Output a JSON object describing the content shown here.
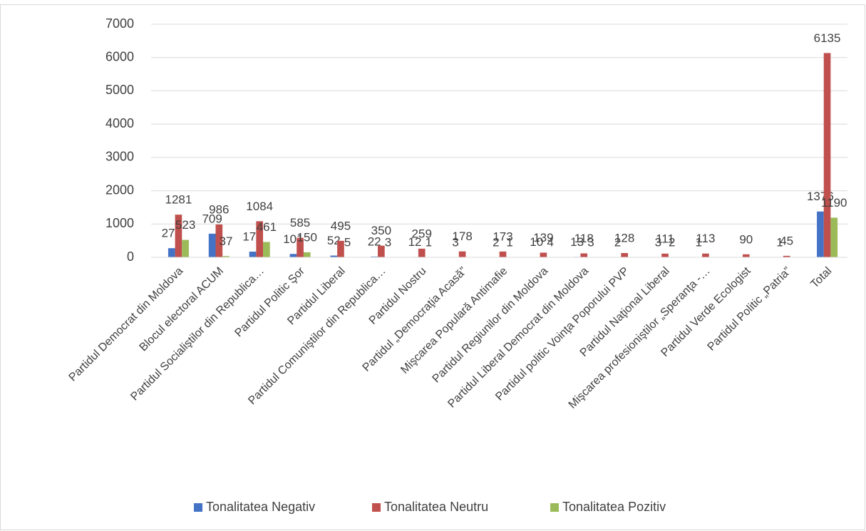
{
  "chart_data": {
    "type": "bar",
    "categories": [
      "Partidul Democrat din Moldova",
      "Blocul electoral ACUM",
      "Partidul Socialiştilor din Republica…",
      "Partidul Politic Şor",
      "Partidul Liberal",
      "Partidul Comuniştilor din Republica…",
      "Partidul Nostru",
      "Partidul „Democraţia Acasă”",
      "Mişcarea Populară Antimafie",
      "Partidul Regiunilor din Moldova",
      "Partidul Liberal Democrat din Moldova",
      "Partidul politic Voinţa Poporului PVP",
      "Partidul Naţional Liberal",
      "Mişcarea profesioniştilor „Speranţa -…",
      "Partidul Verde Ecologist",
      "Partidul Politic „Patria”",
      "Total"
    ],
    "series": [
      {
        "name": "Tonalitatea Negativ",
        "color": "#4472c4",
        "values": [
          274,
          709,
          170,
          101,
          52,
          22,
          12,
          3,
          2,
          10,
          13,
          2,
          3,
          1,
          null,
          1,
          1376
        ]
      },
      {
        "name": "Tonalitatea Neutru",
        "color": "#c0504d",
        "values": [
          1281,
          986,
          1084,
          585,
          495,
          350,
          259,
          178,
          173,
          139,
          118,
          128,
          111,
          113,
          90,
          45,
          6135
        ]
      },
      {
        "name": "Tonalitatea Pozitiv",
        "color": "#9bbb59",
        "values": [
          523,
          37,
          461,
          150,
          5,
          3,
          1,
          null,
          1,
          4,
          3,
          null,
          2,
          null,
          null,
          null,
          1190
        ]
      }
    ],
    "ylim": [
      0,
      7000
    ],
    "yticks": [
      0,
      1000,
      2000,
      3000,
      4000,
      5000,
      6000,
      7000
    ],
    "grid": true,
    "legend": "bottom"
  }
}
